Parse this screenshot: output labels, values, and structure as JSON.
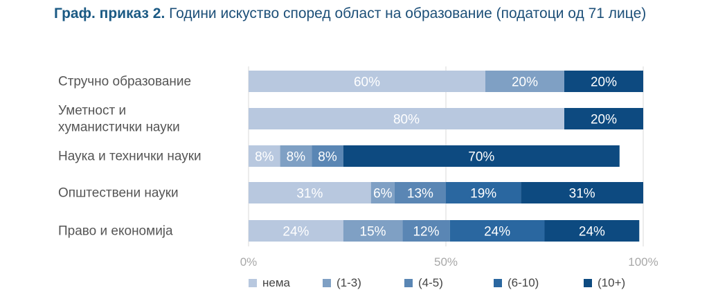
{
  "title": {
    "prefix": "Граф. приказ 2.",
    "text": "Години искуство според област на образование (податоци од 71 лице)"
  },
  "colors": {
    "series": [
      "#b8c8df",
      "#7fa0c4",
      "#5a86b4",
      "#2a67a0",
      "#0d4a80"
    ],
    "title": "#1b5a84",
    "axis": "#d8d8d8"
  },
  "chart_data": {
    "type": "bar",
    "orientation": "horizontal",
    "stacked": true,
    "categories": [
      [
        "Стручно образование"
      ],
      [
        "Уметност и",
        "хуманистички науки"
      ],
      [
        "Наука и технички науки"
      ],
      [
        "Општествени науки"
      ],
      [
        "Право и економија"
      ]
    ],
    "series": [
      {
        "name": "нема",
        "values": [
          60,
          80,
          8,
          31,
          24
        ],
        "labels": [
          "60%",
          "80%",
          "8%",
          "31%",
          "24%"
        ]
      },
      {
        "name": "(1-3)",
        "values": [
          20,
          0,
          8,
          6,
          15
        ],
        "labels": [
          "20%",
          "",
          "8%",
          "6%",
          "15%"
        ]
      },
      {
        "name": "(4-5)",
        "values": [
          0,
          0,
          8,
          13,
          12
        ],
        "labels": [
          "",
          "",
          "8%",
          "13%",
          "12%"
        ]
      },
      {
        "name": "(6-10)",
        "values": [
          0,
          0,
          0,
          19,
          24
        ],
        "labels": [
          "",
          "",
          "",
          "19%",
          "24%"
        ]
      },
      {
        "name": "(10+)",
        "values": [
          20,
          20,
          70,
          31,
          24
        ],
        "labels": [
          "20%",
          "20%",
          "70%",
          "31%",
          "24%"
        ]
      }
    ],
    "xticks": [
      "0%",
      "50%",
      "100%"
    ],
    "xlim": [
      0,
      100
    ],
    "grid": true,
    "legend_position": "bottom"
  }
}
